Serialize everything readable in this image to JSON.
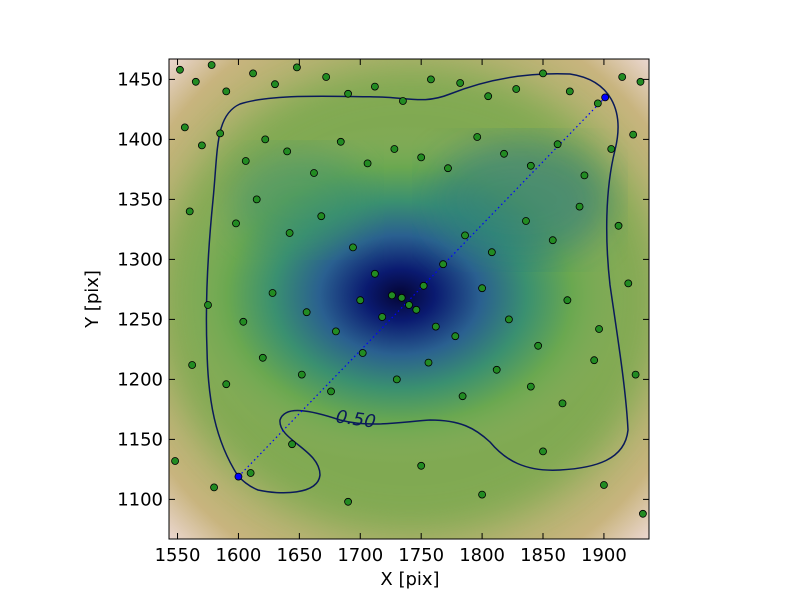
{
  "chart_data": {
    "type": "scatter",
    "xlabel": "X [pix]",
    "ylabel": "Y [pix]",
    "xlim": [
      1543,
      1937
    ],
    "ylim": [
      1067,
      1467
    ],
    "xticks": [
      1550,
      1600,
      1650,
      1700,
      1750,
      1800,
      1850,
      1900
    ],
    "yticks": [
      1100,
      1150,
      1200,
      1250,
      1300,
      1350,
      1400,
      1450
    ],
    "contour_label": "0.50",
    "series": [
      {
        "color": "#228b22",
        "x": [
          1552,
          1565,
          1578,
          1590,
          1612,
          1630,
          1648,
          1672,
          1690,
          1712,
          1735,
          1758,
          1782,
          1805,
          1828,
          1850,
          1872,
          1895,
          1915,
          1930,
          1556,
          1570,
          1585,
          1606,
          1622,
          1640,
          1662,
          1684,
          1706,
          1728,
          1750,
          1772,
          1796,
          1818,
          1840,
          1862,
          1884,
          1906,
          1924,
          1560,
          1598,
          1615,
          1642,
          1668,
          1694,
          1712,
          1726,
          1740,
          1752,
          1768,
          1786,
          1808,
          1836,
          1858,
          1880,
          1912,
          1575,
          1604,
          1628,
          1656,
          1680,
          1700,
          1718,
          1734,
          1746,
          1762,
          1778,
          1800,
          1822,
          1846,
          1870,
          1896,
          1920,
          1562,
          1590,
          1620,
          1652,
          1676,
          1702,
          1730,
          1756,
          1784,
          1812,
          1840,
          1866,
          1892,
          1926,
          1548,
          1580,
          1610,
          1644,
          1690,
          1750,
          1800,
          1850,
          1900,
          1932
        ],
        "y": [
          1458,
          1448,
          1462,
          1440,
          1455,
          1446,
          1460,
          1452,
          1438,
          1444,
          1432,
          1450,
          1447,
          1436,
          1442,
          1455,
          1440,
          1430,
          1452,
          1448,
          1410,
          1395,
          1405,
          1382,
          1400,
          1390,
          1372,
          1398,
          1380,
          1392,
          1385,
          1376,
          1402,
          1388,
          1378,
          1396,
          1370,
          1392,
          1404,
          1340,
          1330,
          1350,
          1322,
          1336,
          1310,
          1288,
          1270,
          1262,
          1278,
          1296,
          1320,
          1306,
          1332,
          1316,
          1344,
          1328,
          1262,
          1248,
          1272,
          1256,
          1240,
          1266,
          1252,
          1268,
          1258,
          1244,
          1236,
          1276,
          1250,
          1228,
          1266,
          1242,
          1280,
          1212,
          1196,
          1218,
          1204,
          1190,
          1222,
          1200,
          1214,
          1186,
          1208,
          1194,
          1180,
          1216,
          1204,
          1132,
          1110,
          1122,
          1146,
          1098,
          1128,
          1104,
          1140,
          1112,
          1088
        ]
      },
      {
        "color": "#0000ff",
        "x": [
          1600,
          1901
        ],
        "y": [
          1119,
          1435
        ]
      }
    ]
  }
}
